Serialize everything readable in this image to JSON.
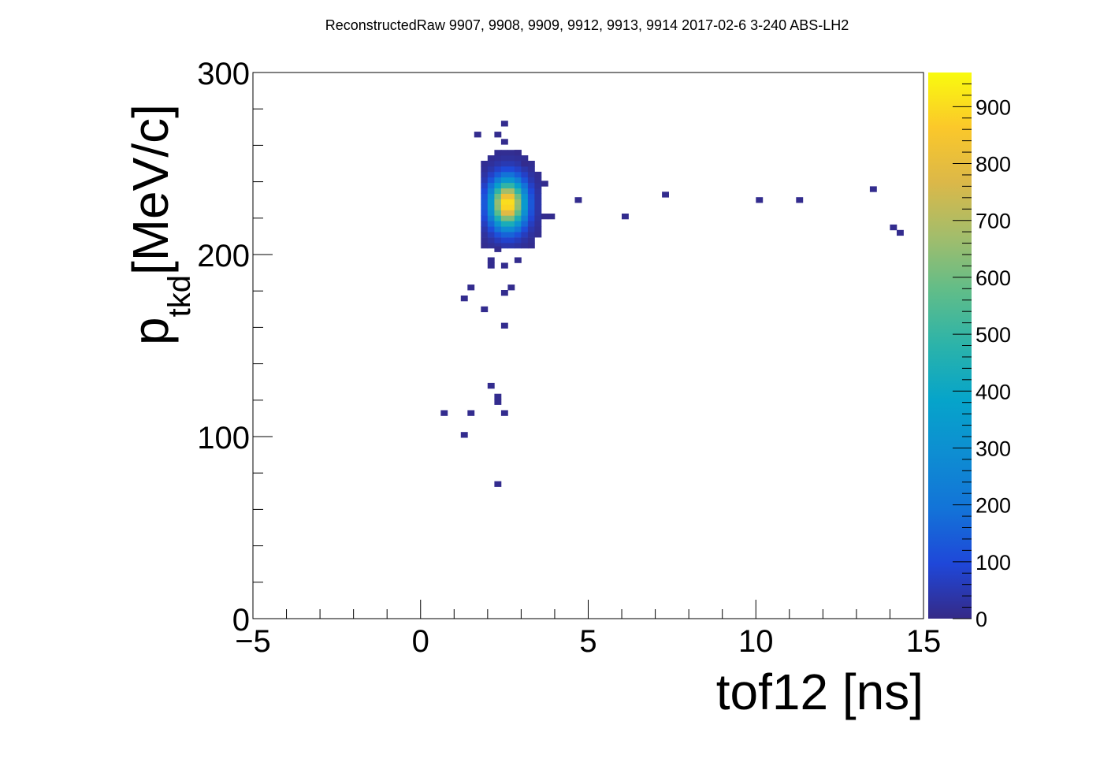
{
  "chart_data": {
    "type": "heatmap",
    "title": "ReconstructedRaw 9907, 9908, 9909, 9912, 9913, 9914 2017-02-6 3-240 ABS-LH2",
    "xlabel": "tof12 [ns]",
    "ylabel_main": "p",
    "ylabel_sub": "tkd",
    "ylabel_unit": "[MeV/c]",
    "xlim": [
      -5,
      15
    ],
    "ylim": [
      0,
      300
    ],
    "x_ticks": [
      -5,
      0,
      5,
      10,
      15
    ],
    "x_tick_labels": [
      "−5",
      "0",
      "5",
      "10",
      "15"
    ],
    "y_ticks": [
      0,
      100,
      200,
      300
    ],
    "y_tick_labels": [
      "0",
      "100",
      "200",
      "300"
    ],
    "colorbar": {
      "range": [
        0,
        960
      ],
      "ticks": [
        0,
        100,
        200,
        300,
        400,
        500,
        600,
        700,
        800,
        900
      ],
      "tick_labels": [
        "0",
        "100",
        "200",
        "300",
        "400",
        "500",
        "600",
        "700",
        "800",
        "900"
      ],
      "colormap": "parula"
    },
    "bin_width_x": 0.2,
    "bin_width_y": 3,
    "cluster": {
      "center": [
        2.6,
        228
      ],
      "sigma_x": 0.35,
      "sigma_y": 9,
      "peak_count": 940,
      "extent": [
        [
          1.9,
          3.6
        ],
        [
          205,
          258
        ]
      ]
    },
    "points": [
      [
        2.5,
        272,
        8
      ],
      [
        1.7,
        266,
        8
      ],
      [
        2.3,
        266,
        8
      ],
      [
        2.5,
        262,
        8
      ],
      [
        2.9,
        256,
        8
      ],
      [
        3.1,
        250,
        8
      ],
      [
        3.7,
        239,
        8
      ],
      [
        4.7,
        230,
        8
      ],
      [
        7.3,
        233,
        8
      ],
      [
        10.1,
        230,
        8
      ],
      [
        11.3,
        230,
        8
      ],
      [
        13.5,
        236,
        8
      ],
      [
        6.1,
        221,
        8
      ],
      [
        3.9,
        221,
        8
      ],
      [
        3.7,
        221,
        8
      ],
      [
        14.1,
        215,
        8
      ],
      [
        14.3,
        212,
        8
      ],
      [
        2.3,
        203,
        8
      ],
      [
        2.9,
        197,
        8
      ],
      [
        2.1,
        197,
        8
      ],
      [
        2.1,
        194,
        8
      ],
      [
        2.5,
        194,
        8
      ],
      [
        1.5,
        182,
        8
      ],
      [
        2.7,
        182,
        8
      ],
      [
        2.5,
        179,
        8
      ],
      [
        1.3,
        176,
        8
      ],
      [
        1.9,
        170,
        8
      ],
      [
        2.5,
        161,
        8
      ],
      [
        2.1,
        128,
        8
      ],
      [
        2.3,
        122,
        8
      ],
      [
        2.3,
        119,
        8
      ],
      [
        0.7,
        113,
        8
      ],
      [
        1.5,
        113,
        8
      ],
      [
        2.5,
        113,
        8
      ],
      [
        1.3,
        101,
        8
      ],
      [
        2.3,
        74,
        8
      ]
    ]
  }
}
